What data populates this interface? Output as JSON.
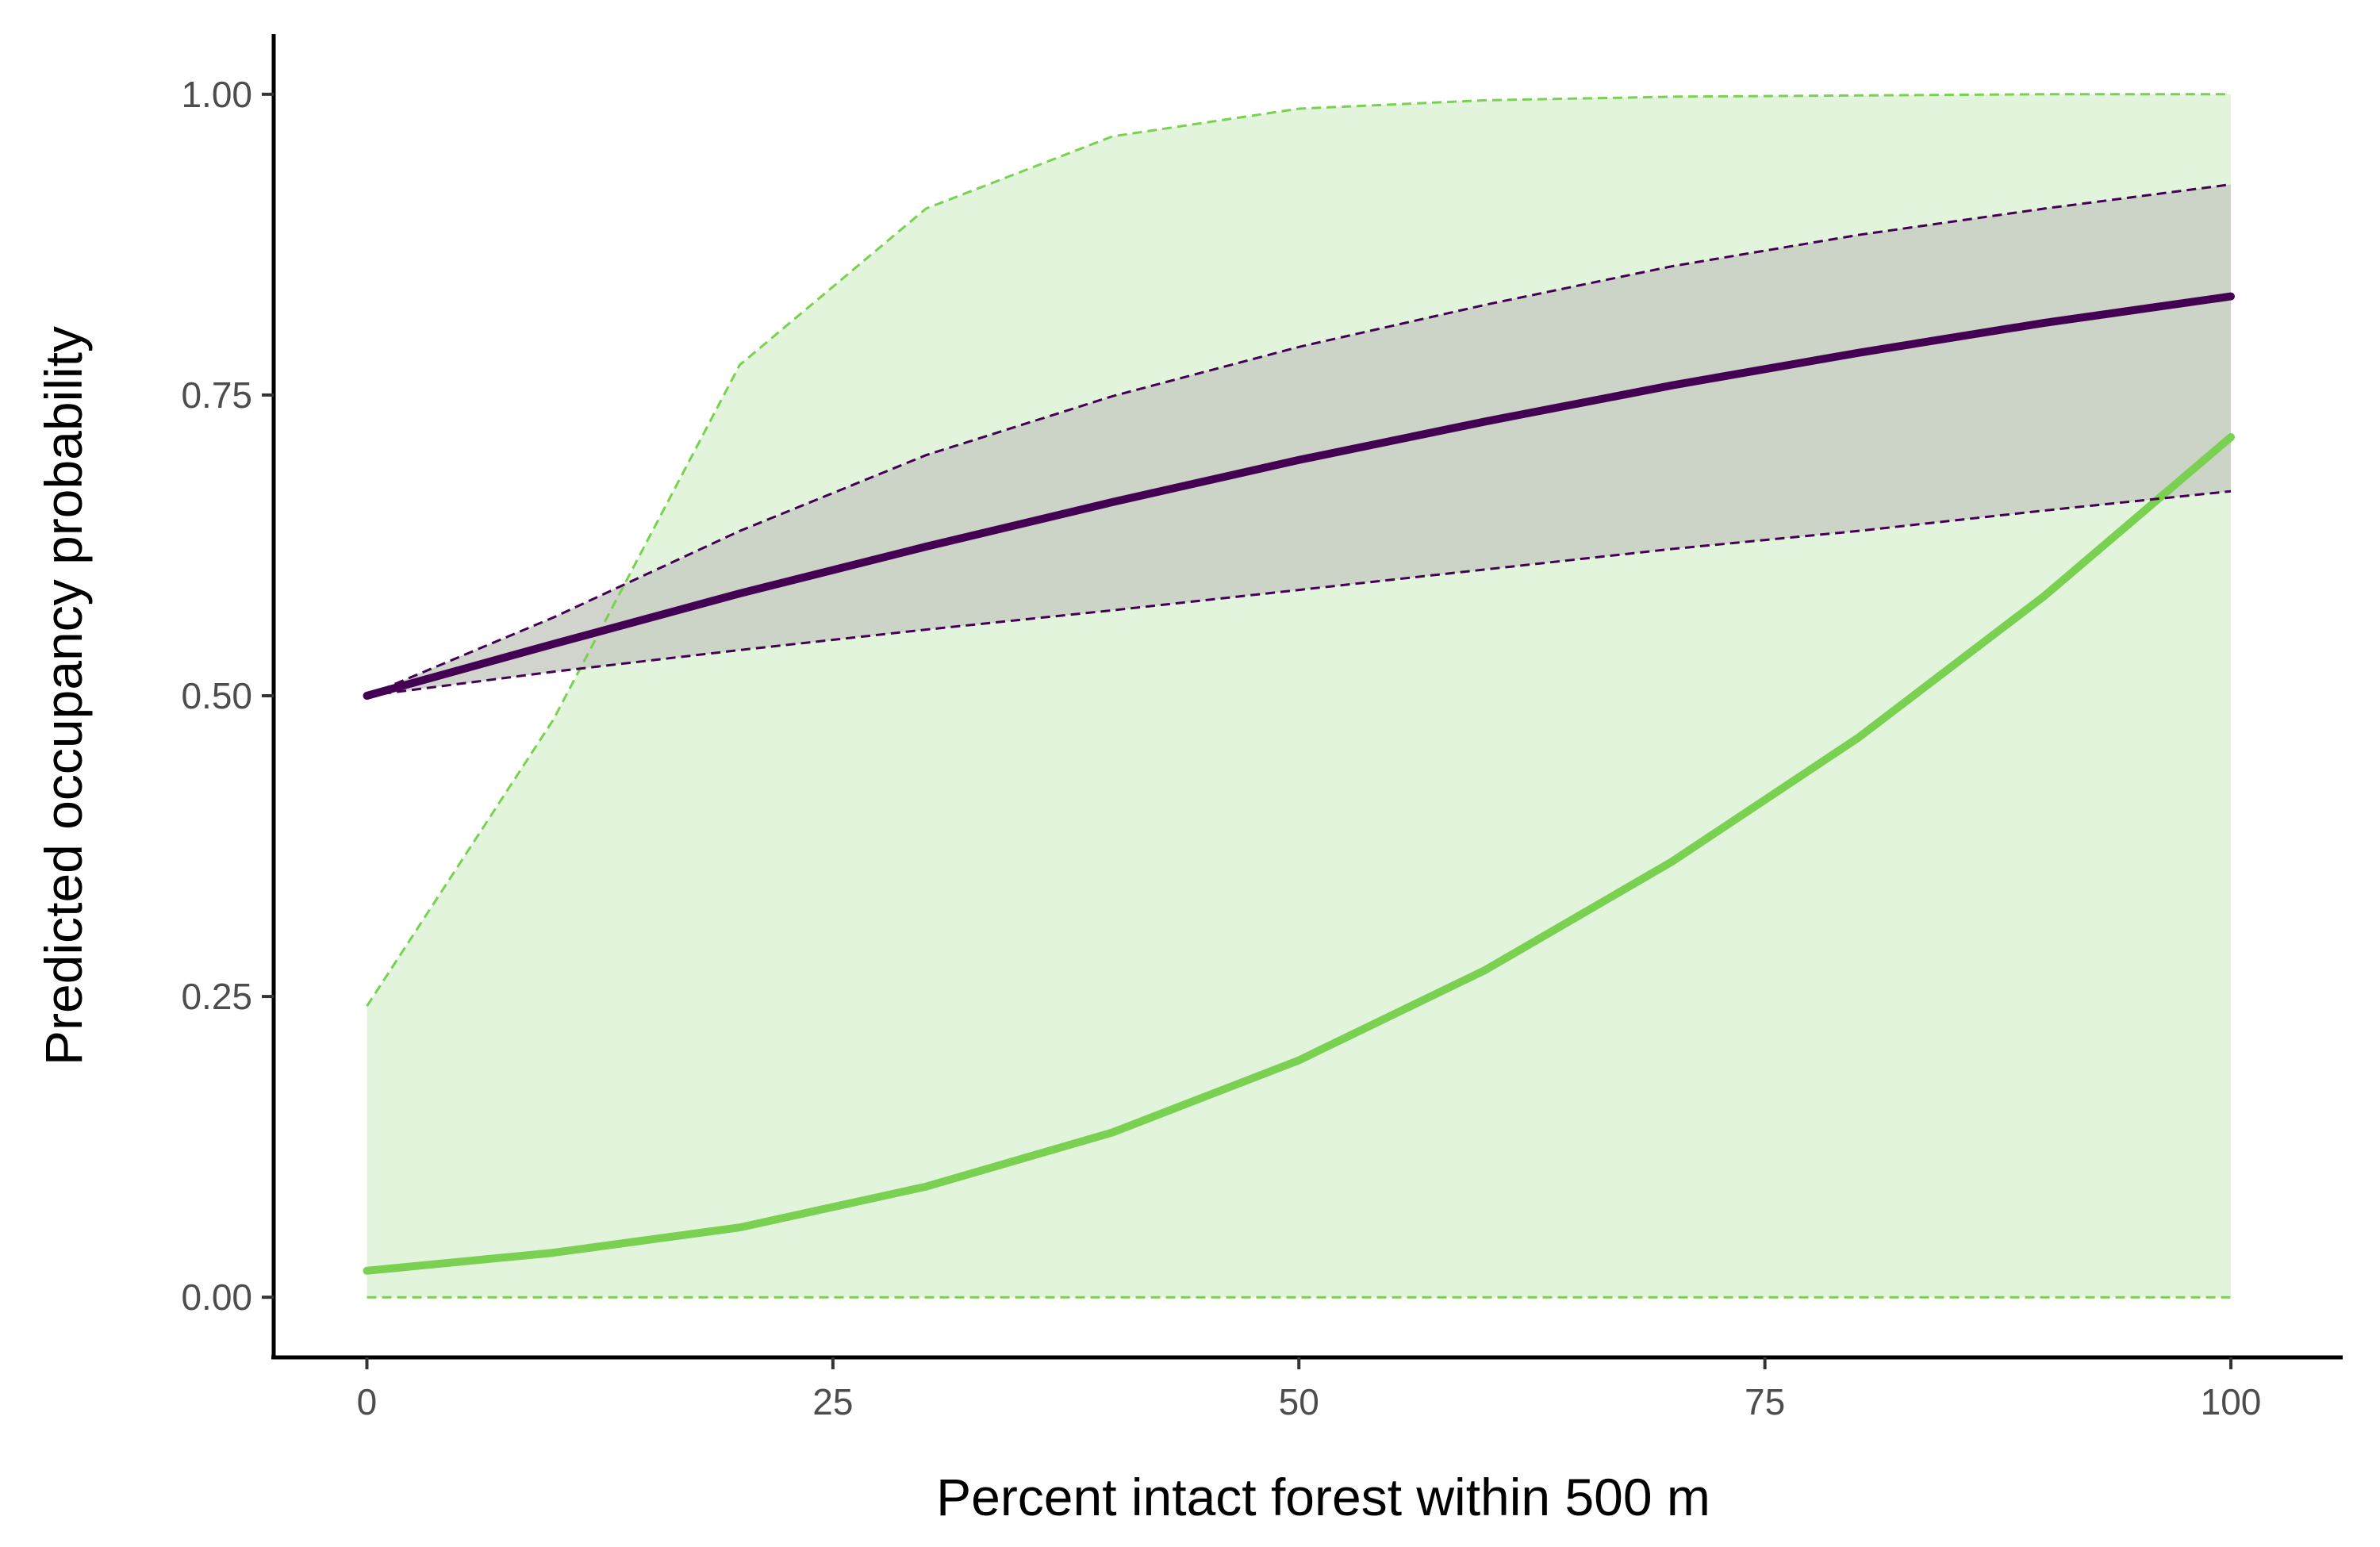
{
  "chart_data": {
    "type": "line",
    "xlabel": "Percent intact forest within 500 m",
    "ylabel": "Predicted occupancy probability",
    "xlim": [
      -5,
      106
    ],
    "ylim": [
      -0.05,
      1.05
    ],
    "x_ticks": [
      0,
      25,
      50,
      75,
      100
    ],
    "x_tick_labels": [
      "0",
      "25",
      "50",
      "75",
      "100"
    ],
    "y_ticks": [
      0,
      0.25,
      0.5,
      0.75,
      1.0
    ],
    "y_tick_labels": [
      "0.00",
      "0.25",
      "0.50",
      "0.75",
      "1.00"
    ],
    "grid": false,
    "legend": "none",
    "x": [
      0,
      10,
      20,
      30,
      40,
      50,
      60,
      70,
      80,
      90,
      100
    ],
    "series": [
      {
        "color": "#7ad151",
        "fill": "#e2f5dc",
        "values": [
          0.022,
          0.037,
          0.058,
          0.092,
          0.137,
          0.197,
          0.272,
          0.362,
          0.465,
          0.583,
          0.715
        ],
        "lower": [
          0,
          0,
          0,
          0,
          0,
          0,
          0,
          0,
          0,
          0,
          0
        ],
        "upper": [
          0.242,
          0.48,
          0.775,
          0.905,
          0.965,
          0.988,
          0.995,
          0.998,
          0.999,
          1.0,
          1.0
        ]
      },
      {
        "color": "#440154",
        "fill": "#c8cdc3",
        "values": [
          0.5,
          0.543,
          0.585,
          0.624,
          0.661,
          0.696,
          0.728,
          0.758,
          0.785,
          0.81,
          0.832
        ],
        "lower": [
          0.5,
          0.52,
          0.538,
          0.555,
          0.571,
          0.588,
          0.605,
          0.622,
          0.637,
          0.654,
          0.67
        ],
        "upper": [
          0.5,
          0.565,
          0.637,
          0.7,
          0.749,
          0.79,
          0.825,
          0.857,
          0.883,
          0.905,
          0.925
        ]
      }
    ]
  }
}
